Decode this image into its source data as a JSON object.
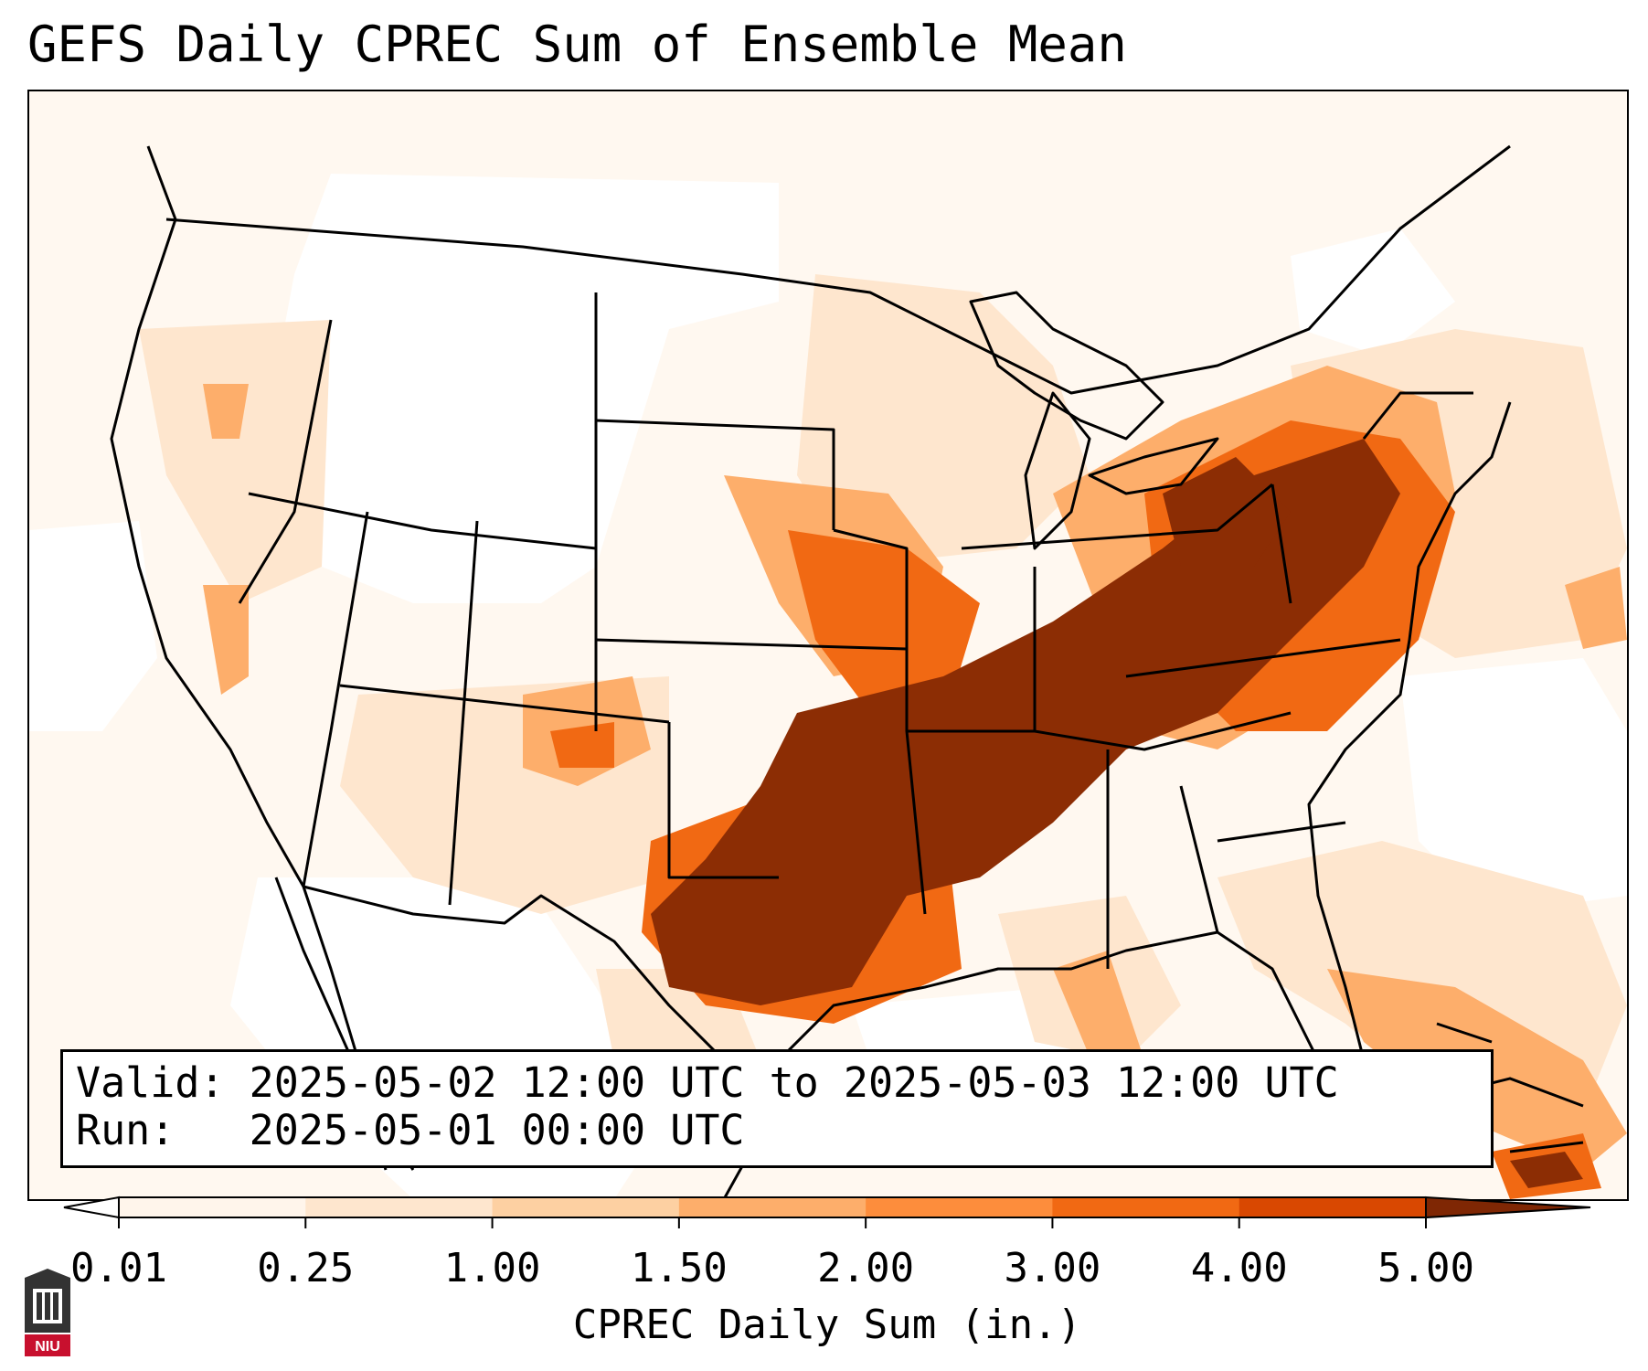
{
  "title": "GEFS Daily CPREC Sum of Ensemble Mean",
  "valid_label": "Valid:",
  "valid_text": "2025-05-02 12:00 UTC to 2025-05-03 12:00 UTC",
  "run_label": "Run:",
  "run_text": "2025-05-01 00:00 UTC",
  "colorbar": {
    "label": "CPREC Daily Sum (in.)",
    "ticks": [
      "0.01",
      "0.25",
      "1.00",
      "1.50",
      "2.00",
      "3.00",
      "4.00",
      "5.00"
    ],
    "colors": [
      "#fff5eb",
      "#fee6ce",
      "#fdd0a2",
      "#fdae6b",
      "#fd8d3c",
      "#f16913",
      "#d94801",
      "#8c2d04"
    ],
    "over_color": "#7f2704",
    "under_color": "#ffffff",
    "extend": "both"
  },
  "logo": {
    "icon": "niu-university-seal-icon",
    "text": "NIU",
    "color": "#c8102e"
  }
}
